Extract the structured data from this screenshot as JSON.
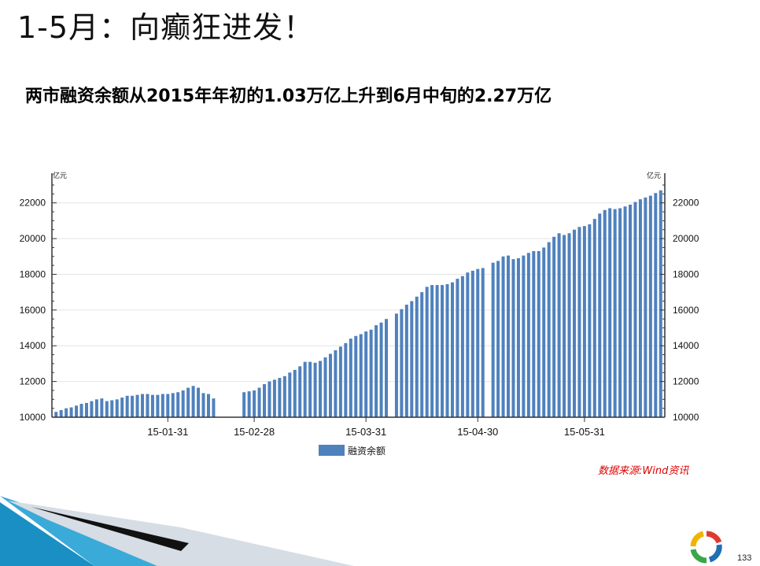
{
  "slide": {
    "title": "1-5月：向癫狂进发！",
    "subtitle": "两市融资余额从2015年年初的1.03万亿上升到6月中旬的2.27万亿",
    "source": "数据来源:Wind资讯",
    "page_number": "133"
  },
  "colors": {
    "bar": "#4f81bd",
    "source_text": "#e00000"
  },
  "chart_data": {
    "type": "bar",
    "ylabel_left": "亿元",
    "ylabel_right": "亿元",
    "ylim": [
      10000,
      23000
    ],
    "yticks": [
      10000,
      12000,
      14000,
      16000,
      18000,
      20000,
      22000
    ],
    "xtick_labels": [
      "15-01-31",
      "15-02-28",
      "15-03-31",
      "15-04-30",
      "15-05-31"
    ],
    "legend": "融资余额",
    "legend_position": "bottom-center",
    "grid": true,
    "series": [
      {
        "name": "融资余额",
        "values": [
          10300,
          10400,
          10500,
          10550,
          10650,
          10750,
          10800,
          10900,
          11000,
          11050,
          10900,
          10950,
          11000,
          11100,
          11200,
          11200,
          11250,
          11300,
          11300,
          11250,
          11250,
          11300,
          11300,
          11350,
          11400,
          11500,
          11650,
          11750,
          11650,
          11350,
          11300,
          11050,
          null,
          null,
          null,
          null,
          null,
          11400,
          11450,
          11500,
          11650,
          11850,
          12000,
          12100,
          12200,
          12300,
          12500,
          12650,
          12850,
          13100,
          13100,
          13050,
          13150,
          13350,
          13550,
          13750,
          13950,
          14150,
          14400,
          14550,
          14650,
          14800,
          14900,
          15150,
          15300,
          15500,
          null,
          15800,
          16050,
          16300,
          16500,
          16750,
          17000,
          17300,
          17400,
          17400,
          17400,
          17450,
          17550,
          17750,
          17900,
          18100,
          18200,
          18300,
          18350,
          null,
          18650,
          18750,
          19000,
          19050,
          18850,
          18900,
          19050,
          19200,
          19300,
          19300,
          19500,
          19800,
          20100,
          20300,
          20200,
          20300,
          20500,
          20650,
          20700,
          20800,
          21100,
          21400,
          21600,
          21700,
          21650,
          21700,
          21800,
          21900,
          22050,
          22200,
          22300,
          22400,
          22550,
          22700
        ]
      }
    ]
  }
}
